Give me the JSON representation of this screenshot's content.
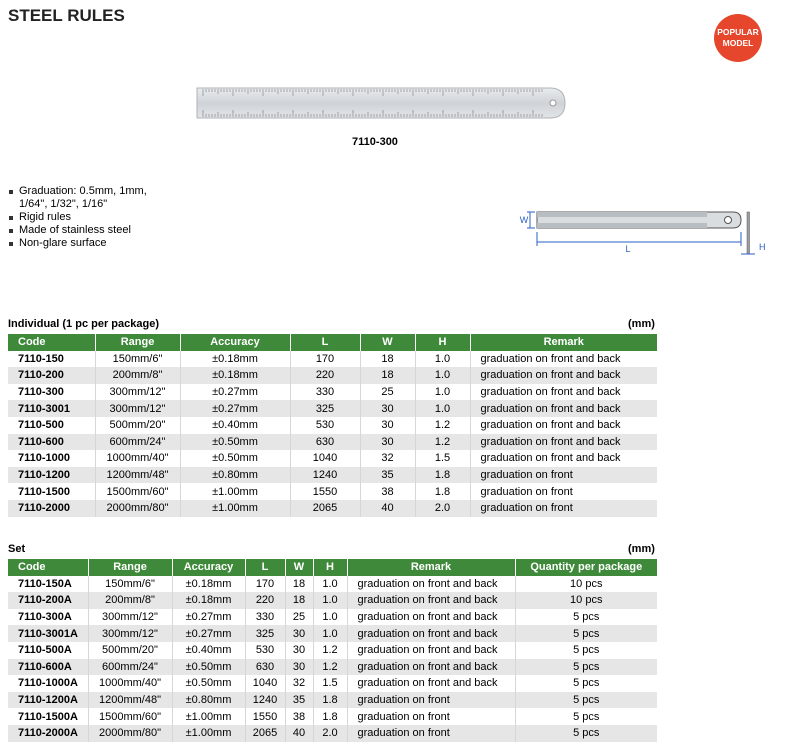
{
  "header": {
    "title": "STEEL RULES",
    "badge": [
      "POPULAR",
      "MODEL"
    ]
  },
  "product_image": {
    "caption": "7110-300"
  },
  "features": [
    "Graduation: 0.5mm, 1mm, 1/64\", 1/32\", 1/16\"",
    "Rigid rules",
    "Made of stainless steel",
    "Non-glare surface"
  ],
  "diagram_labels": {
    "w": "W",
    "l": "L",
    "h": "H"
  },
  "individual": {
    "title": "Individual (1 pc per package)",
    "unit": "(mm)",
    "columns": [
      "Code",
      "Range",
      "Accuracy",
      "L",
      "W",
      "H",
      "Remark"
    ],
    "rows": [
      [
        "7110-150",
        "150mm/6\"",
        "±0.18mm",
        "170",
        "18",
        "1.0",
        "graduation on front and back"
      ],
      [
        "7110-200",
        "200mm/8\"",
        "±0.18mm",
        "220",
        "18",
        "1.0",
        "graduation on front and back"
      ],
      [
        "7110-300",
        "300mm/12\"",
        "±0.27mm",
        "330",
        "25",
        "1.0",
        "graduation on front and back"
      ],
      [
        "7110-3001",
        "300mm/12\"",
        "±0.27mm",
        "325",
        "30",
        "1.0",
        "graduation on front and back"
      ],
      [
        "7110-500",
        "500mm/20\"",
        "±0.40mm",
        "530",
        "30",
        "1.2",
        "graduation on front and back"
      ],
      [
        "7110-600",
        "600mm/24\"",
        "±0.50mm",
        "630",
        "30",
        "1.2",
        "graduation on front and back"
      ],
      [
        "7110-1000",
        "1000mm/40\"",
        "±0.50mm",
        "1040",
        "32",
        "1.5",
        "graduation on front and back"
      ],
      [
        "7110-1200",
        "1200mm/48\"",
        "±0.80mm",
        "1240",
        "35",
        "1.8",
        "graduation on front"
      ],
      [
        "7110-1500",
        "1500mm/60\"",
        "±1.00mm",
        "1550",
        "38",
        "1.8",
        "graduation on front"
      ],
      [
        "7110-2000",
        "2000mm/80\"",
        "±1.00mm",
        "2065",
        "40",
        "2.0",
        "graduation on front"
      ]
    ]
  },
  "set": {
    "title": "Set",
    "unit": "(mm)",
    "columns": [
      "Code",
      "Range",
      "Accuracy",
      "L",
      "W",
      "H",
      "Remark",
      "Quantity per package"
    ],
    "rows": [
      [
        "7110-150A",
        "150mm/6\"",
        "±0.18mm",
        "170",
        "18",
        "1.0",
        "graduation on front and back",
        "10 pcs"
      ],
      [
        "7110-200A",
        "200mm/8\"",
        "±0.18mm",
        "220",
        "18",
        "1.0",
        "graduation on front and back",
        "10 pcs"
      ],
      [
        "7110-300A",
        "300mm/12\"",
        "±0.27mm",
        "330",
        "25",
        "1.0",
        "graduation on front and back",
        "5 pcs"
      ],
      [
        "7110-3001A",
        "300mm/12\"",
        "±0.27mm",
        "325",
        "30",
        "1.0",
        "graduation on front and back",
        "5 pcs"
      ],
      [
        "7110-500A",
        "500mm/20\"",
        "±0.40mm",
        "530",
        "30",
        "1.2",
        "graduation on front and back",
        "5 pcs"
      ],
      [
        "7110-600A",
        "600mm/24\"",
        "±0.50mm",
        "630",
        "30",
        "1.2",
        "graduation on front and back",
        "5 pcs"
      ],
      [
        "7110-1000A",
        "1000mm/40\"",
        "±0.50mm",
        "1040",
        "32",
        "1.5",
        "graduation on front and back",
        "5 pcs"
      ],
      [
        "7110-1200A",
        "1200mm/48\"",
        "±0.80mm",
        "1240",
        "35",
        "1.8",
        "graduation on front",
        "5 pcs"
      ],
      [
        "7110-1500A",
        "1500mm/60\"",
        "±1.00mm",
        "1550",
        "38",
        "1.8",
        "graduation on front",
        "5 pcs"
      ],
      [
        "7110-2000A",
        "2000mm/80\"",
        "±1.00mm",
        "2065",
        "40",
        "2.0",
        "graduation on front",
        "5 pcs"
      ]
    ]
  }
}
